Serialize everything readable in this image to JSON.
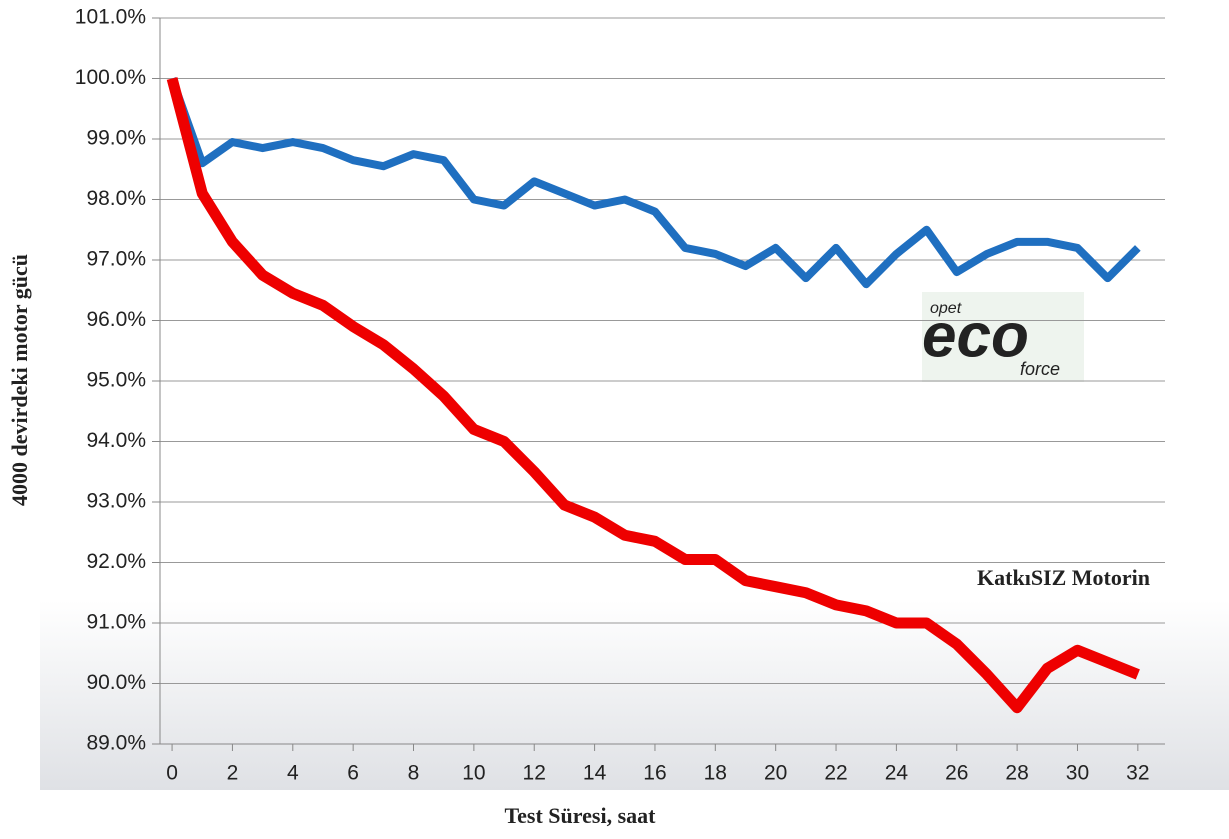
{
  "chart_data": {
    "type": "line",
    "x_label": "Test Süresi, saat",
    "y_label": "4000 devirdeki motor gücü",
    "x": [
      0,
      1,
      2,
      3,
      4,
      5,
      6,
      7,
      8,
      9,
      10,
      11,
      12,
      13,
      14,
      15,
      16,
      17,
      18,
      19,
      20,
      21,
      22,
      23,
      24,
      25,
      26,
      27,
      28,
      29,
      30,
      31,
      32
    ],
    "series": [
      {
        "color": "#1f6fc0",
        "values": [
          100.0,
          98.6,
          98.95,
          98.85,
          98.95,
          98.85,
          98.65,
          98.55,
          98.75,
          98.65,
          98.0,
          97.9,
          98.3,
          98.1,
          97.9,
          98.0,
          97.8,
          97.2,
          97.1,
          96.9,
          97.2,
          96.7,
          97.2,
          96.6,
          97.1,
          97.5,
          96.8,
          97.1,
          97.3,
          97.3,
          97.2,
          96.7,
          97.2
        ]
      },
      {
        "name": "KatkıSIZ Motorin",
        "color": "#ee0000",
        "values": [
          100.0,
          98.1,
          97.3,
          96.75,
          96.45,
          96.25,
          95.9,
          95.6,
          95.2,
          94.75,
          94.2,
          94.0,
          93.5,
          92.95,
          92.75,
          92.45,
          92.35,
          92.05,
          92.05,
          91.7,
          91.6,
          91.5,
          91.3,
          91.2,
          91.0,
          91.0,
          90.65,
          90.15,
          89.6,
          90.25,
          90.55,
          90.35,
          90.15
        ]
      }
    ],
    "xlim": [
      -0.4,
      32.9
    ],
    "xticks": [
      0,
      2,
      4,
      6,
      8,
      10,
      12,
      14,
      16,
      18,
      20,
      22,
      24,
      26,
      28,
      30,
      32
    ],
    "ylim": [
      89,
      101
    ],
    "yticks": [
      {
        "value": 89,
        "label": "89.0%"
      },
      {
        "value": 90,
        "label": "90.0%"
      },
      {
        "value": 91,
        "label": "91.0%"
      },
      {
        "value": 92,
        "label": "92.0%"
      },
      {
        "value": 93,
        "label": "93.0%"
      },
      {
        "value": 94,
        "label": "94.0%"
      },
      {
        "value": 95,
        "label": "95.0%"
      },
      {
        "value": 96,
        "label": "96.0%"
      },
      {
        "value": 97,
        "label": "97.0%"
      },
      {
        "value": 98,
        "label": "98.0%"
      },
      {
        "value": 99,
        "label": "99.0%"
      },
      {
        "value": 100,
        "label": "100.0%"
      },
      {
        "value": 101,
        "label": "101.0%"
      }
    ],
    "grid": true,
    "logo_text": [
      "opet",
      "eco",
      "force"
    ]
  }
}
